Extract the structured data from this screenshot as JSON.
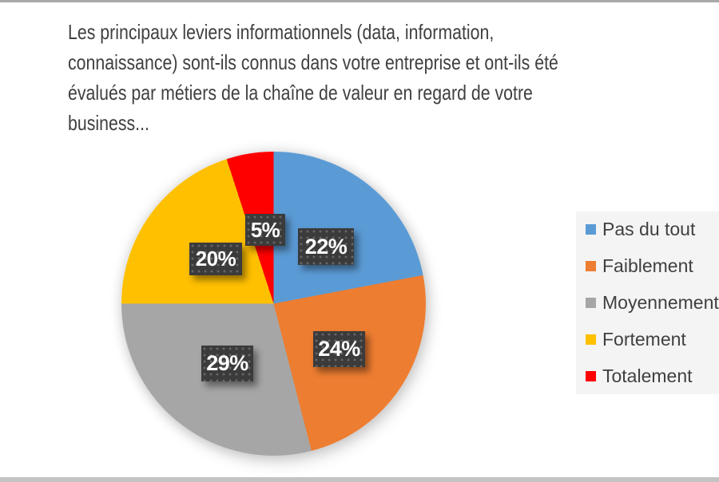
{
  "page": {
    "background": "#ffffff",
    "top_strip_color": "#a9a9a9",
    "bottom_strip_color": "#c3c3c3"
  },
  "chart_data": {
    "type": "pie",
    "title": "Les principaux leviers informationnels (data, information, connaissance) sont-ils connus dans votre entreprise et ont-ils été évalués par métiers de la chaîne de valeur en regard de votre business...",
    "title_lines": [
      "Les principaux leviers informationnels (data, information,",
      "connaissance) sont-ils connus dans votre entreprise et ont-ils été",
      "évalués par métiers de la chaîne de valeur en regard de votre",
      "business..."
    ],
    "categories": [
      "Pas du tout",
      "Faiblement",
      "Moyennement",
      "Fortement",
      "Totalement"
    ],
    "values": [
      22,
      24,
      29,
      20,
      5
    ],
    "unit": "%",
    "data_labels": [
      "22%",
      "24%",
      "29%",
      "20%",
      "5%"
    ],
    "colors": [
      "#5B9BD5",
      "#ED7D31",
      "#A6A6A6",
      "#FFC000",
      "#FF0000"
    ],
    "start_angle_deg": 0,
    "direction": "clockwise",
    "legend_position": "right",
    "title_color": "#404040",
    "legend_text_color": "#404040",
    "legend_background": "#F4F4F4",
    "data_label_style": {
      "background": "#3B3B3B",
      "text_color": "#FFFFFF"
    }
  }
}
